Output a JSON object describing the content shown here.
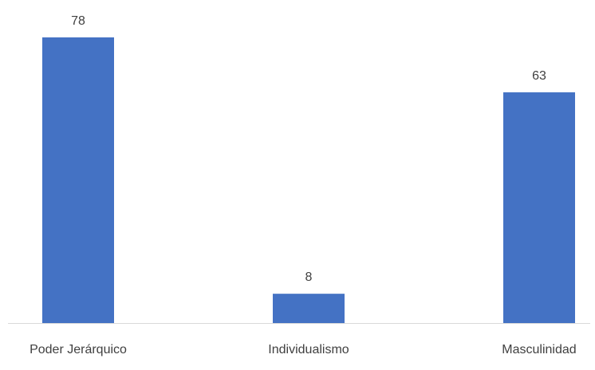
{
  "chart_data": {
    "type": "bar",
    "categories": [
      "Poder Jerárquico",
      "Individualismo",
      "Masculinidad"
    ],
    "values": [
      78,
      8,
      63
    ],
    "data_labels": [
      "78",
      "8",
      "63"
    ],
    "title": "",
    "xlabel": "",
    "ylabel": "",
    "ylim": [
      0,
      78
    ],
    "grid": false,
    "legend": "none",
    "bar_color": "#4472C4",
    "axis_color": "#D9D9D9",
    "text_color": "#404040"
  }
}
